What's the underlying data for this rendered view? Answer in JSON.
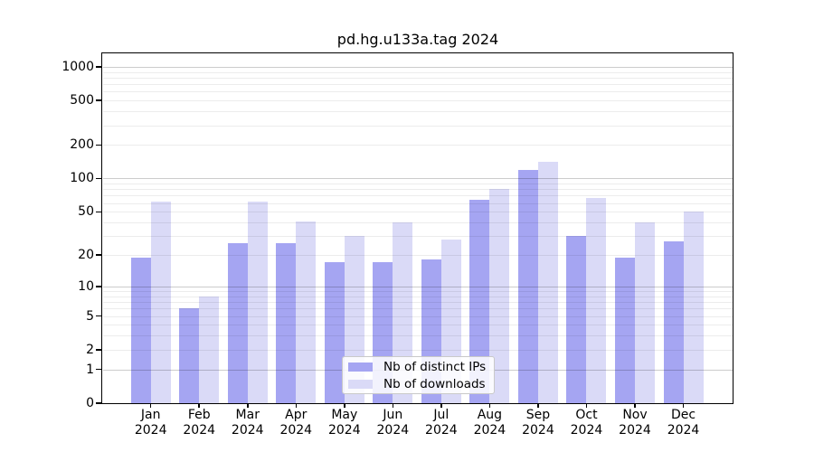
{
  "chart_data": {
    "type": "bar",
    "title": "pd.hg.u133a.tag 2024",
    "categories": [
      "Jan",
      "Feb",
      "Mar",
      "Apr",
      "May",
      "Jun",
      "Jul",
      "Aug",
      "Sep",
      "Oct",
      "Nov",
      "Dec"
    ],
    "x_sublabel": "2024",
    "series": [
      {
        "name": "Nb of distinct IPs",
        "color": "#a5a5f2",
        "values": [
          19,
          6,
          26,
          26,
          17,
          17,
          18,
          64,
          120,
          30,
          19,
          27
        ]
      },
      {
        "name": "Nb of downloads",
        "color": "#dadaf7",
        "values": [
          62,
          8,
          62,
          41,
          30,
          40,
          28,
          80,
          140,
          67,
          40,
          50
        ]
      }
    ],
    "yscale": "log10(value+1)",
    "ylim": [
      0,
      1296
    ],
    "yticks": [
      1000,
      500,
      200,
      100,
      50,
      20,
      10,
      5,
      2,
      1,
      0
    ],
    "grid": {
      "major_lines": [
        1,
        10,
        100,
        1000
      ],
      "minor_lines": [
        2,
        3,
        4,
        5,
        6,
        7,
        8,
        9,
        20,
        30,
        40,
        50,
        60,
        70,
        80,
        90,
        200,
        300,
        400,
        500,
        600,
        700,
        800,
        900
      ]
    },
    "legend_position": "lower center",
    "axis_color": "#000000",
    "background_color": "#ffffff"
  }
}
